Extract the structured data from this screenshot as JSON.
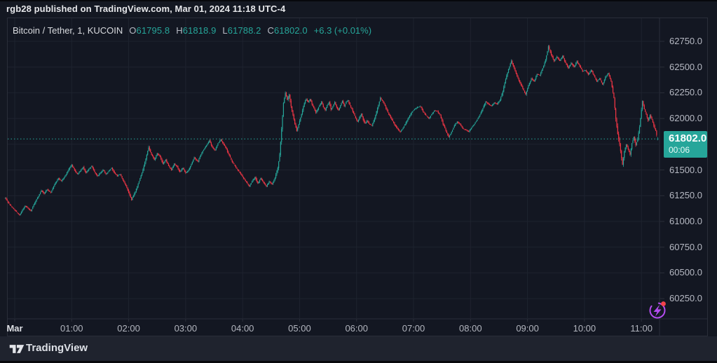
{
  "header": {
    "published_line": "rgb28 published on TradingView.com, Mar 01, 2024 11:18 UTC-4"
  },
  "legend": {
    "symbol": "Bitcoin / Tether, 1, KUCOIN",
    "o_label": "O",
    "o_value": "61795.8",
    "h_label": "H",
    "h_value": "61818.9",
    "l_label": "L",
    "l_value": "61788.2",
    "c_label": "C",
    "c_value": "61802.0",
    "change": "+6.3 (+0.01%)"
  },
  "price_scale": {
    "labels": [
      {
        "text": "62750.0",
        "price": 62750
      },
      {
        "text": "62500.0",
        "price": 62500
      },
      {
        "text": "62250.0",
        "price": 62250
      },
      {
        "text": "62000.0",
        "price": 62000
      },
      {
        "text": "61500.0",
        "price": 61500
      },
      {
        "text": "61250.0",
        "price": 61250
      },
      {
        "text": "61000.0",
        "price": 61000
      },
      {
        "text": "60750.0",
        "price": 60750
      },
      {
        "text": "60500.0",
        "price": 60500
      },
      {
        "text": "60250.0",
        "price": 60250
      }
    ],
    "last_price_badge": {
      "text": "61802.0",
      "countdown": "00:06",
      "price": 61802
    }
  },
  "time_scale": {
    "labels": [
      {
        "text": "Mar",
        "minute": 0,
        "emphasis": true
      },
      {
        "text": "01:00",
        "minute": 60,
        "emphasis": false
      },
      {
        "text": "02:00",
        "minute": 120,
        "emphasis": false
      },
      {
        "text": "03:00",
        "minute": 180,
        "emphasis": false
      },
      {
        "text": "04:00",
        "minute": 240,
        "emphasis": false
      },
      {
        "text": "05:00",
        "minute": 300,
        "emphasis": false
      },
      {
        "text": "06:00",
        "minute": 360,
        "emphasis": false
      },
      {
        "text": "07:00",
        "minute": 420,
        "emphasis": false
      },
      {
        "text": "08:00",
        "minute": 480,
        "emphasis": false
      },
      {
        "text": "09:00",
        "minute": 540,
        "emphasis": false
      },
      {
        "text": "10:00",
        "minute": 600,
        "emphasis": false
      },
      {
        "text": "11:00",
        "minute": 660,
        "emphasis": false
      }
    ]
  },
  "footer": {
    "brand": "TradingView"
  },
  "icons": {
    "flash_icon": "lightning-bolt-in-circle",
    "flash_color": "#b44cf0",
    "notification_dot_color": "#f3434a"
  },
  "colors": {
    "up": "#26a69a",
    "down": "#f23645",
    "background": "#131722",
    "grid": "#1e232f",
    "axis_border": "#2a2e39",
    "axis_text": "#b6b9c3",
    "badge_bg": "#26a69a"
  },
  "chart_data": {
    "type": "candlestick",
    "title": "Bitcoin / Tether, 1, KUCOIN",
    "symbol": "Bitcoin / Tether",
    "interval_minutes": 1,
    "exchange": "KUCOIN",
    "last_bar": {
      "open": 61795.8,
      "high": 61818.9,
      "low": 61788.2,
      "close": 61802.0,
      "change": 6.3,
      "change_pct": 0.01
    },
    "current_price_line": 61802.0,
    "ylim": [
      60250,
      62750
    ],
    "grid_step": 250,
    "x_start_minute": -10,
    "x_end_minute": 677,
    "grid": "on",
    "price_anchors": [
      [
        -10,
        61230
      ],
      [
        -6,
        61170
      ],
      [
        -2,
        61130
      ],
      [
        2,
        61090
      ],
      [
        5,
        61060
      ],
      [
        8,
        61110
      ],
      [
        11,
        61150
      ],
      [
        14,
        61130
      ],
      [
        17,
        61100
      ],
      [
        20,
        61160
      ],
      [
        24,
        61230
      ],
      [
        28,
        61300
      ],
      [
        31,
        61270
      ],
      [
        34,
        61310
      ],
      [
        38,
        61280
      ],
      [
        42,
        61360
      ],
      [
        46,
        61420
      ],
      [
        49,
        61390
      ],
      [
        53,
        61440
      ],
      [
        57,
        61510
      ],
      [
        60,
        61550
      ],
      [
        63,
        61500
      ],
      [
        66,
        61460
      ],
      [
        69,
        61490
      ],
      [
        72,
        61530
      ],
      [
        75,
        61470
      ],
      [
        78,
        61510
      ],
      [
        81,
        61540
      ],
      [
        84,
        61480
      ],
      [
        87,
        61440
      ],
      [
        90,
        61470
      ],
      [
        93,
        61500
      ],
      [
        96,
        61460
      ],
      [
        99,
        61490
      ],
      [
        102,
        61520
      ],
      [
        105,
        61470
      ],
      [
        108,
        61440
      ],
      [
        111,
        61460
      ],
      [
        114,
        61400
      ],
      [
        117,
        61350
      ],
      [
        120,
        61280
      ],
      [
        123,
        61210
      ],
      [
        126,
        61270
      ],
      [
        129,
        61340
      ],
      [
        132,
        61420
      ],
      [
        135,
        61500
      ],
      [
        138,
        61610
      ],
      [
        141,
        61720
      ],
      [
        144,
        61650
      ],
      [
        147,
        61600
      ],
      [
        150,
        61660
      ],
      [
        153,
        61630
      ],
      [
        156,
        61560
      ],
      [
        159,
        61600
      ],
      [
        162,
        61540
      ],
      [
        165,
        61500
      ],
      [
        168,
        61560
      ],
      [
        171,
        61530
      ],
      [
        174,
        61480
      ],
      [
        177,
        61520
      ],
      [
        180,
        61470
      ],
      [
        183,
        61500
      ],
      [
        186,
        61560
      ],
      [
        189,
        61620
      ],
      [
        193,
        61580
      ],
      [
        196,
        61650
      ],
      [
        199,
        61700
      ],
      [
        202,
        61740
      ],
      [
        205,
        61785
      ],
      [
        208,
        61720
      ],
      [
        211,
        61690
      ],
      [
        214,
        61760
      ],
      [
        217,
        61795
      ],
      [
        220,
        61750
      ],
      [
        223,
        61700
      ],
      [
        226,
        61640
      ],
      [
        229,
        61580
      ],
      [
        232,
        61540
      ],
      [
        235,
        61500
      ],
      [
        238,
        61460
      ],
      [
        241,
        61420
      ],
      [
        244,
        61380
      ],
      [
        247,
        61340
      ],
      [
        250,
        61390
      ],
      [
        253,
        61430
      ],
      [
        256,
        61370
      ],
      [
        259,
        61420
      ],
      [
        262,
        61380
      ],
      [
        265,
        61340
      ],
      [
        268,
        61390
      ],
      [
        271,
        61360
      ],
      [
        274,
        61420
      ],
      [
        277,
        61520
      ],
      [
        279,
        61650
      ],
      [
        281,
        61900
      ],
      [
        283,
        62150
      ],
      [
        285,
        62250
      ],
      [
        287,
        62180
      ],
      [
        289,
        62230
      ],
      [
        291,
        62120
      ],
      [
        293,
        62030
      ],
      [
        295,
        61950
      ],
      [
        297,
        61880
      ],
      [
        299,
        61940
      ],
      [
        301,
        62010
      ],
      [
        303,
        62080
      ],
      [
        305,
        62150
      ],
      [
        307,
        62190
      ],
      [
        309,
        62160
      ],
      [
        311,
        62190
      ],
      [
        313,
        62140
      ],
      [
        315,
        62100
      ],
      [
        317,
        62060
      ],
      [
        319,
        62090
      ],
      [
        321,
        62130
      ],
      [
        323,
        62160
      ],
      [
        325,
        62110
      ],
      [
        327,
        62080
      ],
      [
        329,
        62130
      ],
      [
        331,
        62160
      ],
      [
        333,
        62090
      ],
      [
        335,
        62120
      ],
      [
        337,
        62160
      ],
      [
        339,
        62110
      ],
      [
        341,
        62080
      ],
      [
        343,
        62130
      ],
      [
        345,
        62170
      ],
      [
        347,
        62120
      ],
      [
        349,
        62160
      ],
      [
        351,
        62180
      ],
      [
        353,
        62130
      ],
      [
        355,
        62090
      ],
      [
        357,
        62050
      ],
      [
        359,
        62000
      ],
      [
        361,
        61970
      ],
      [
        363,
        62010
      ],
      [
        365,
        62050
      ],
      [
        367,
        61990
      ],
      [
        369,
        61950
      ],
      [
        371,
        61980
      ],
      [
        373,
        61950
      ],
      [
        376,
        61930
      ],
      [
        379,
        62000
      ],
      [
        382,
        62100
      ],
      [
        385,
        62200
      ],
      [
        388,
        62160
      ],
      [
        391,
        62100
      ],
      [
        394,
        62040
      ],
      [
        397,
        61990
      ],
      [
        400,
        61940
      ],
      [
        403,
        61900
      ],
      [
        406,
        61870
      ],
      [
        409,
        61910
      ],
      [
        412,
        61960
      ],
      [
        415,
        62010
      ],
      [
        418,
        62060
      ],
      [
        421,
        62090
      ],
      [
        424,
        62110
      ],
      [
        427,
        62120
      ],
      [
        430,
        62070
      ],
      [
        433,
        62030
      ],
      [
        436,
        62000
      ],
      [
        439,
        62040
      ],
      [
        442,
        62080
      ],
      [
        445,
        62070
      ],
      [
        448,
        62030
      ],
      [
        451,
        61950
      ],
      [
        454,
        61880
      ],
      [
        457,
        61820
      ],
      [
        460,
        61870
      ],
      [
        463,
        61930
      ],
      [
        466,
        61970
      ],
      [
        469,
        61940
      ],
      [
        472,
        61900
      ],
      [
        475,
        61890
      ],
      [
        478,
        61870
      ],
      [
        481,
        61910
      ],
      [
        484,
        61950
      ],
      [
        487,
        61990
      ],
      [
        490,
        62040
      ],
      [
        493,
        62100
      ],
      [
        496,
        62165
      ],
      [
        499,
        62140
      ],
      [
        502,
        62120
      ],
      [
        505,
        62155
      ],
      [
        508,
        62140
      ],
      [
        511,
        62180
      ],
      [
        514,
        62260
      ],
      [
        517,
        62380
      ],
      [
        520,
        62480
      ],
      [
        523,
        62560
      ],
      [
        526,
        62490
      ],
      [
        529,
        62410
      ],
      [
        532,
        62350
      ],
      [
        535,
        62290
      ],
      [
        538,
        62235
      ],
      [
        541,
        62320
      ],
      [
        544,
        62390
      ],
      [
        547,
        62360
      ],
      [
        550,
        62430
      ],
      [
        553,
        62420
      ],
      [
        556,
        62490
      ],
      [
        559,
        62570
      ],
      [
        562,
        62700
      ],
      [
        565,
        62620
      ],
      [
        568,
        62560
      ],
      [
        571,
        62600
      ],
      [
        574,
        62560
      ],
      [
        577,
        62610
      ],
      [
        580,
        62540
      ],
      [
        583,
        62490
      ],
      [
        586,
        62540
      ],
      [
        589,
        62500
      ],
      [
        592,
        62555
      ],
      [
        595,
        62510
      ],
      [
        598,
        62460
      ],
      [
        601,
        62470
      ],
      [
        604,
        62430
      ],
      [
        607,
        62470
      ],
      [
        610,
        62420
      ],
      [
        613,
        62360
      ],
      [
        616,
        62390
      ],
      [
        619,
        62330
      ],
      [
        622,
        62400
      ],
      [
        625,
        62440
      ],
      [
        628,
        62360
      ],
      [
        631,
        62200
      ],
      [
        633,
        62000
      ],
      [
        635,
        61850
      ],
      [
        637,
        61750
      ],
      [
        640,
        61550
      ],
      [
        642,
        61680
      ],
      [
        644,
        61750
      ],
      [
        646,
        61700
      ],
      [
        648,
        61650
      ],
      [
        650,
        61760
      ],
      [
        652,
        61820
      ],
      [
        654,
        61740
      ],
      [
        656,
        61800
      ],
      [
        658,
        61920
      ],
      [
        661,
        62170
      ],
      [
        663,
        62090
      ],
      [
        665,
        62040
      ],
      [
        667,
        61980
      ],
      [
        669,
        62030
      ],
      [
        671,
        61990
      ],
      [
        673,
        61930
      ],
      [
        675,
        61880
      ],
      [
        677,
        61802
      ]
    ]
  }
}
